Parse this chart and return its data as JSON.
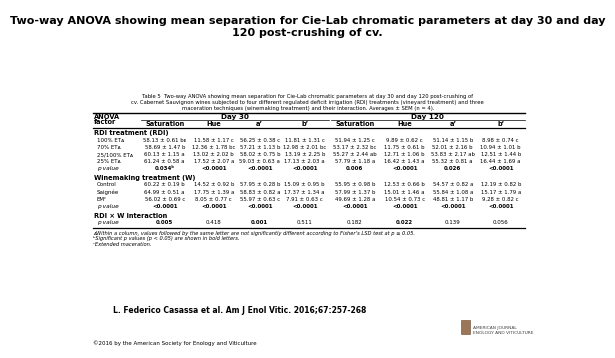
{
  "title": "Two-way ANOVA showing mean separation for Cie-Lab chromatic parameters at day 30 and day\n120 post-crushing of cv.",
  "table_caption": "Table 5  Two-way ANOVA showing mean separation for Cie-Lab chromatic parameters at day 30 and day 120 post-crushing of\ncv. Cabernet Sauvignon wines subjected to four different regulated deficit irrigation (RDI) treatments (vineyard treatment) and three\nmaceration techniques (winemaking treatment) and their interaction. Averages ± SEM (n = 4).",
  "col_headers_sub": [
    "Saturation",
    "Hue",
    "a’",
    "b’",
    "Saturation",
    "Hue",
    "a’",
    "b’"
  ],
  "sections": [
    {
      "name": "RDI treatment (RDI)",
      "rows": [
        {
          "label": "100% ETᴀ",
          "values": [
            "58.13 ± 0.61 bᴇ",
            "11.58 ± 1.17 c",
            "56.25 ± 0.38 c",
            "11.81 ± 1.31 c",
            "51.94 ± 1.25 c",
            "9.89 ± 0.62 c",
            "51.14 ± 1.15 b",
            "8.98 ± 0.74 c"
          ]
        },
        {
          "label": "70% ETᴀ",
          "values": [
            "58.69 ± 1.47 b",
            "12.36 ± 1.78 bc",
            "57.21 ± 1.13 b",
            "12.98 ± 2.01 bc",
            "53.17 ± 2.32 bc",
            "11.75 ± 0.61 b",
            "52.01 ± 2.16 b",
            "10.94 ± 1.01 b"
          ]
        },
        {
          "label": "25/100% ETᴀ",
          "values": [
            "60.13 ± 1.15 a",
            "13.02 ± 2.02 b",
            "58.02 ± 0.75 b",
            "13.19 ± 2.25 b",
            "55.27 ± 2.44 ab",
            "12.71 ± 1.06 b",
            "53.83 ± 2.17 ab",
            "12.51 ± 1.44 b"
          ]
        },
        {
          "label": "25% ETᴀ",
          "values": [
            "61.24 ± 0.58 a",
            "17.52 ± 2.07 a",
            "59.03 ± 0.63 a",
            "17.13 ± 2.03 a",
            "57.79 ± 1.18 a",
            "16.42 ± 1.43 a",
            "55.32 ± 0.81 a",
            "16.44 ± 1.69 a"
          ]
        }
      ],
      "prow": {
        "label": "p value",
        "values": [
          "0.034ᵇ",
          "<0.0001",
          "<0.0001",
          "<0.0001",
          "0.006",
          "<0.0001",
          "0.026",
          "<0.0001"
        ],
        "bold": [
          true,
          true,
          true,
          true,
          true,
          true,
          true,
          true
        ]
      }
    },
    {
      "name": "Winemaking treatment (W)",
      "rows": [
        {
          "label": "Control",
          "values": [
            "60.22 ± 0.19 b",
            "14.52 ± 0.92 b",
            "57.95 ± 0.28 b",
            "15.09 ± 0.95 b",
            "55.95 ± 0.98 b",
            "12.53 ± 0.66 b",
            "54.57 ± 0.82 a",
            "12.19 ± 0.82 b"
          ]
        },
        {
          "label": "Saignée",
          "values": [
            "64.99 ± 0.51 a",
            "17.75 ± 1.39 a",
            "58.83 ± 0.82 a",
            "17.37 ± 1.34 a",
            "57.99 ± 1.37 b",
            "15.01 ± 1.46 a",
            "55.84 ± 1.08 a",
            "15.17 ± 1.79 a"
          ]
        },
        {
          "label": "EMᶜ",
          "values": [
            "56.02 ± 0.69 c",
            "8.05 ± 0.77 c",
            "55.97 ± 0.63 c",
            "7.91 ± 0.63 c",
            "49.69 ± 1.28 a",
            "10.54 ± 0.73 c",
            "48.81 ± 1.17 b",
            "9.28 ± 0.82 c"
          ]
        }
      ],
      "prow": {
        "label": "p value",
        "values": [
          "<0.0001",
          "<0.0001",
          "<0.0001",
          "<0.0001",
          "<0.0001",
          "<0.0001",
          "<0.0001",
          "<0.0001"
        ],
        "bold": [
          true,
          true,
          true,
          true,
          true,
          true,
          true,
          true
        ]
      }
    },
    {
      "name": "RDI × W interaction",
      "rows": [],
      "prow": {
        "label": "p value",
        "values": [
          "0.005",
          "0.418",
          "0.001",
          "0.511",
          "0.182",
          "0.022",
          "0.139",
          "0.056"
        ],
        "bold": [
          true,
          false,
          true,
          false,
          false,
          true,
          false,
          false
        ]
      }
    }
  ],
  "footnotes": [
    "ᴀWithin a column, values followed by the same letter are not significantly different according to Fisher’s LSD test at p ≤ 0.05.",
    "ᵇSignificant p values (p < 0.05) are shown in bold letters.",
    "ᶜExtended maceration."
  ],
  "citation": "L. Federico Casassa et al. Am J Enol Vitic. 2016;67:257-268",
  "copyright": "©2016 by the American Society for Enology and Viticulture",
  "bg_color": "#ffffff"
}
